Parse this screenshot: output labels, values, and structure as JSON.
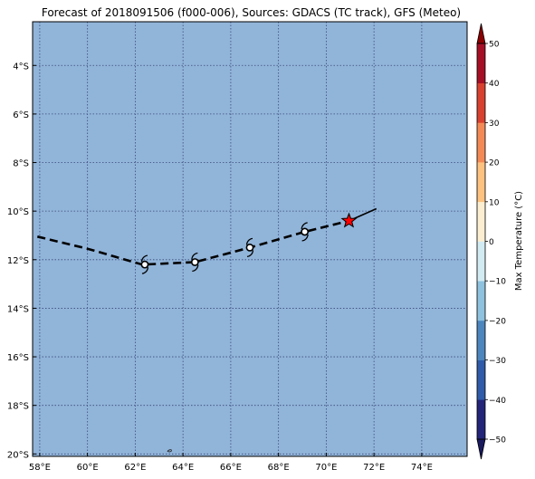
{
  "title": "Forecast of 2018091506 (f000-006), Sources: GDACS (TC track), GFS (Meteo)",
  "map": {
    "lon_range": [
      57.7,
      75.9
    ],
    "lat_range": [
      -20.1,
      -2.2
    ],
    "ocean_color": "#91b4d9",
    "grid_color": "#3a4a7a",
    "lon_ticks": [
      {
        "value": 58,
        "label": "58°E"
      },
      {
        "value": 60,
        "label": "60°E"
      },
      {
        "value": 62,
        "label": "62°E"
      },
      {
        "value": 64,
        "label": "64°E"
      },
      {
        "value": 66,
        "label": "66°E"
      },
      {
        "value": 68,
        "label": "68°E"
      },
      {
        "value": 70,
        "label": "70°E"
      },
      {
        "value": 72,
        "label": "72°E"
      },
      {
        "value": 74,
        "label": "74°E"
      }
    ],
    "lat_ticks": [
      {
        "value": -4,
        "label": "4°S"
      },
      {
        "value": -6,
        "label": "6°S"
      },
      {
        "value": -8,
        "label": "8°S"
      },
      {
        "value": -10,
        "label": "10°S"
      },
      {
        "value": -12,
        "label": "12°S"
      },
      {
        "value": -14,
        "label": "14°S"
      },
      {
        "value": -16,
        "label": "16°S"
      },
      {
        "value": -18,
        "label": "18°S"
      },
      {
        "value": -20,
        "label": "20°S"
      }
    ],
    "forecast_track": [
      [
        57.9,
        -11.05
      ],
      [
        60.0,
        -11.55
      ],
      [
        62.3,
        -12.2
      ],
      [
        64.5,
        -12.1
      ],
      [
        66.8,
        -11.5
      ],
      [
        69.1,
        -10.85
      ],
      [
        70.95,
        -10.4
      ]
    ],
    "past_track": [
      [
        70.95,
        -10.4
      ],
      [
        72.1,
        -9.9
      ]
    ],
    "storm_symbols": [
      [
        62.4,
        -12.2
      ],
      [
        64.5,
        -12.1
      ],
      [
        66.8,
        -11.5
      ],
      [
        69.1,
        -10.85
      ]
    ],
    "current_position": [
      70.95,
      -10.4
    ],
    "star_color": "#ff0000",
    "islet": [
      63.45,
      -19.85
    ]
  },
  "colorbar": {
    "label": "Max Temperature (°C)",
    "levels": [
      -50,
      -40,
      -30,
      -20,
      -10,
      0,
      10,
      20,
      30,
      40,
      50
    ],
    "tick_labels": [
      "−50",
      "−40",
      "−30",
      "−20",
      "−10",
      "0",
      "10",
      "20",
      "30",
      "40",
      "50"
    ],
    "colors": [
      "#232578",
      "#2f5ba8",
      "#4c86bd",
      "#8ec2de",
      "#d2ebf3",
      "#fbeed1",
      "#fdc27f",
      "#f38a56",
      "#d8412f",
      "#a50f26"
    ],
    "extend_low_color": "#1a1a5e",
    "extend_high_color": "#8b0000"
  }
}
